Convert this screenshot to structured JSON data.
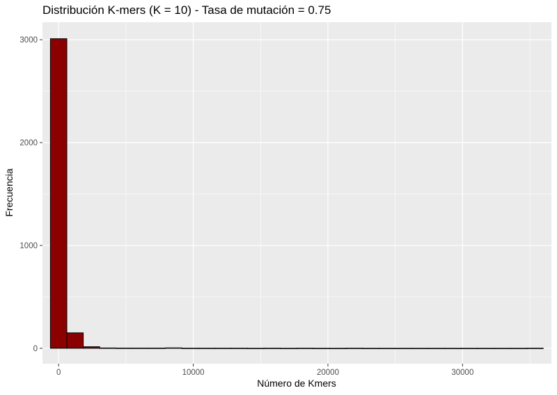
{
  "chart_data": {
    "type": "bar",
    "title": "Distribución K-mers (K = 10) - Tasa de mutación = 0.75",
    "xlabel": "Número de Kmers",
    "ylabel": "Frecuencia",
    "xlim": [
      -1200,
      36600
    ],
    "ylim": [
      -150,
      3170
    ],
    "x_ticks": [
      0,
      10000,
      20000,
      30000
    ],
    "x_tick_labels": [
      "0",
      "10000",
      "20000",
      "30000"
    ],
    "y_ticks": [
      0,
      1000,
      2000,
      3000
    ],
    "y_tick_labels": [
      "0",
      "1000",
      "2000",
      "3000"
    ],
    "grid": true,
    "bin_width": 1220,
    "bin_centers": [
      0,
      1220,
      2440,
      3660,
      4880,
      6100,
      7320,
      8540,
      9760,
      10980,
      12200,
      13420,
      14640,
      15860,
      17080,
      18300,
      19520,
      20740,
      21960,
      23180,
      24400,
      25620,
      26840,
      28060,
      29280,
      30500,
      31720,
      32940,
      34160,
      35380
    ],
    "values": [
      3010,
      150,
      15,
      3,
      2,
      2,
      2,
      4,
      1,
      1,
      1,
      1,
      0,
      1,
      0,
      1,
      0,
      0,
      1,
      0,
      0,
      0,
      0,
      0,
      0,
      0,
      0,
      0,
      0,
      1
    ],
    "colors": {
      "fill": "#8b0000",
      "stroke": "#000000",
      "panel": "#ebebeb",
      "grid": "#ffffff"
    }
  }
}
